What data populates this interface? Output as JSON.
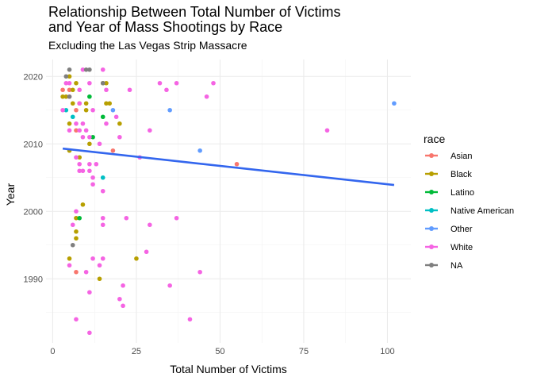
{
  "chart_data": {
    "type": "scatter",
    "title": [
      "Relationship Between Total Number of Victims",
      "and Year of Mass Shootings by Race"
    ],
    "subtitle": "Excluding the Las Vegas Strip Massacre",
    "xlabel": "Total Number of Victims",
    "ylabel": "Year",
    "xlim": [
      -2,
      107
    ],
    "ylim": [
      1980.5,
      2022.5
    ],
    "x_ticks": [
      0,
      25,
      50,
      75,
      100
    ],
    "x_tick_labels": [
      "0",
      "25",
      "50",
      "75",
      "100"
    ],
    "y_ticks": [
      1990,
      2000,
      2010,
      2020
    ],
    "y_tick_labels": [
      "1990",
      "2000",
      "2010",
      "2020"
    ],
    "grid": true,
    "legend": {
      "title": "race",
      "position": "right"
    },
    "trend_line": {
      "color": "#3366ee",
      "x": [
        3,
        102
      ],
      "y": [
        2009.3,
        2003.9
      ]
    },
    "series": [
      {
        "name": "Asian",
        "color": "#f8766d",
        "points": [
          [
            3,
            2018
          ],
          [
            5,
            2018
          ],
          [
            7,
            2015
          ],
          [
            7,
            2012
          ],
          [
            18,
            2009
          ],
          [
            55,
            2007
          ],
          [
            7,
            1991
          ]
        ]
      },
      {
        "name": "Black",
        "color": "#b79f00",
        "points": [
          [
            3,
            2017
          ],
          [
            5,
            2020
          ],
          [
            7,
            2019
          ],
          [
            6,
            2018
          ],
          [
            4,
            2017
          ],
          [
            8,
            2016
          ],
          [
            6,
            2016
          ],
          [
            10,
            2016
          ],
          [
            16,
            2019
          ],
          [
            15,
            2019
          ],
          [
            17,
            2016
          ],
          [
            16,
            2016
          ],
          [
            10,
            2015
          ],
          [
            20,
            2013
          ],
          [
            5,
            2013
          ],
          [
            11,
            2010
          ],
          [
            5,
            2009
          ],
          [
            8,
            2008
          ],
          [
            9,
            2001
          ],
          [
            7,
            1999
          ],
          [
            7,
            1997
          ],
          [
            7,
            1996
          ],
          [
            5,
            1993
          ],
          [
            25,
            1993
          ],
          [
            14,
            1990
          ]
        ]
      },
      {
        "name": "Latino",
        "color": "#00ba38",
        "points": [
          [
            11,
            2017
          ],
          [
            15,
            2014
          ],
          [
            12,
            2011
          ],
          [
            8,
            1999
          ]
        ]
      },
      {
        "name": "Native American",
        "color": "#00bfc4",
        "points": [
          [
            4,
            2015
          ],
          [
            6,
            2014
          ],
          [
            15,
            2005
          ]
        ]
      },
      {
        "name": "Other",
        "color": "#619cff",
        "points": [
          [
            35,
            2015
          ],
          [
            18,
            2015
          ],
          [
            44,
            2009
          ],
          [
            102,
            2016
          ]
        ]
      },
      {
        "name": "White",
        "color": "#f564e3",
        "points": [
          [
            9,
            2021
          ],
          [
            15,
            2021
          ],
          [
            4,
            2019
          ],
          [
            5,
            2019
          ],
          [
            11,
            2019
          ],
          [
            32,
            2019
          ],
          [
            37,
            2019
          ],
          [
            48,
            2019
          ],
          [
            16,
            2018
          ],
          [
            23,
            2018
          ],
          [
            34,
            2018
          ],
          [
            8,
            2018
          ],
          [
            5,
            2017
          ],
          [
            46,
            2017
          ],
          [
            8,
            2016
          ],
          [
            3,
            2015
          ],
          [
            12,
            2015
          ],
          [
            19,
            2014
          ],
          [
            7,
            2013
          ],
          [
            9,
            2013
          ],
          [
            16,
            2013
          ],
          [
            5,
            2012
          ],
          [
            8,
            2012
          ],
          [
            10,
            2012
          ],
          [
            29,
            2012
          ],
          [
            82,
            2012
          ],
          [
            9,
            2011
          ],
          [
            11,
            2011
          ],
          [
            20,
            2011
          ],
          [
            14,
            2010
          ],
          [
            26,
            2008
          ],
          [
            7,
            2008
          ],
          [
            11,
            2007
          ],
          [
            8,
            2007
          ],
          [
            13,
            2007
          ],
          [
            8,
            2006
          ],
          [
            9,
            2006
          ],
          [
            11,
            2006
          ],
          [
            12,
            2005
          ],
          [
            12,
            2004
          ],
          [
            15,
            2003
          ],
          [
            7,
            2000
          ],
          [
            15,
            1999
          ],
          [
            22,
            1999
          ],
          [
            37,
            1999
          ],
          [
            6,
            1998
          ],
          [
            15,
            1998
          ],
          [
            29,
            1998
          ],
          [
            28,
            1994
          ],
          [
            12,
            1993
          ],
          [
            15,
            1993
          ],
          [
            14,
            1992
          ],
          [
            5,
            1992
          ],
          [
            44,
            1991
          ],
          [
            10,
            1991
          ],
          [
            21,
            1989
          ],
          [
            35,
            1989
          ],
          [
            11,
            1988
          ],
          [
            20,
            1987
          ],
          [
            21,
            1986
          ],
          [
            7,
            1984
          ],
          [
            41,
            1984
          ],
          [
            11,
            1982
          ]
        ]
      },
      {
        "name": "NA",
        "color": "#7f7f7f",
        "points": [
          [
            5,
            2021
          ],
          [
            10,
            2021
          ],
          [
            11,
            2021
          ],
          [
            4,
            2020
          ],
          [
            15,
            2019
          ],
          [
            5,
            2017
          ],
          [
            6,
            1995
          ]
        ]
      }
    ]
  }
}
